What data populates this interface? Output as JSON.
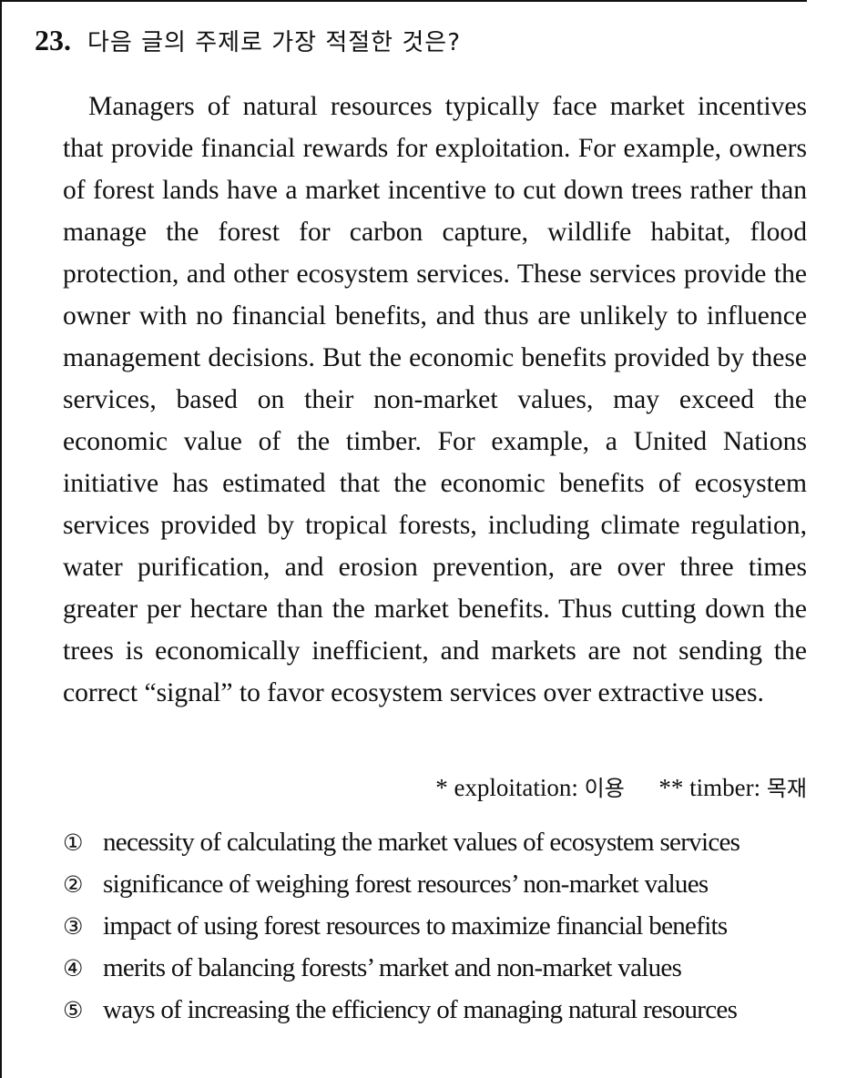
{
  "question": {
    "number": "23.",
    "prompt": "다음 글의 주제로 가장 적절한 것은?"
  },
  "passage": "Managers of natural resources typically face market incentives that provide financial rewards for exploitation. For example, owners of forest lands have a market incentive to cut down trees rather than manage the forest for carbon capture, wildlife habitat, flood protection, and other ecosystem services. These services provide the owner with no financial benefits, and thus are unlikely to influence management decisions. But the economic benefits provided by these services, based on their non-market values, may exceed the economic value of the timber. For example, a United Nations initiative has estimated that the economic benefits of ecosystem services provided by tropical forests, including climate regulation, water purification, and erosion prevention, are over three times greater per hectare than the market benefits. Thus cutting down the trees is economically inefficient, and markets are not sending the correct “signal” to favor ecosystem services over extractive uses.",
  "footnotes": [
    {
      "marker": "*",
      "term": "exploitation:",
      "gloss": "이용"
    },
    {
      "marker": "**",
      "term": "timber:",
      "gloss": "목재"
    }
  ],
  "options": [
    {
      "marker": "①",
      "text": "necessity of calculating the market values of ecosystem services"
    },
    {
      "marker": "②",
      "text": "significance of weighing forest resources’ non-market values"
    },
    {
      "marker": "③",
      "text": "impact of using forest resources to maximize financial benefits"
    },
    {
      "marker": "④",
      "text": "merits of balancing forests’ market and non-market values"
    },
    {
      "marker": "⑤",
      "text": "ways of increasing the efficiency of managing natural resources"
    }
  ]
}
